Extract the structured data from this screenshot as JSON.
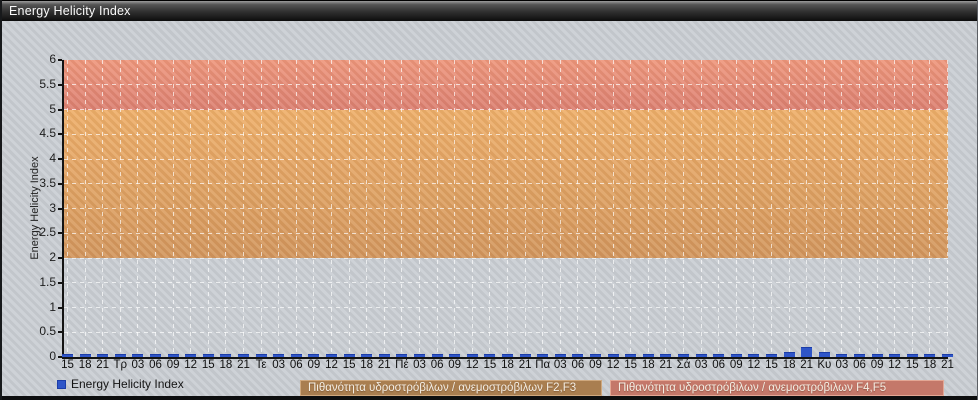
{
  "window": {
    "title": "Energy Helicity Index"
  },
  "legend": {
    "series_label": "Energy Helicity Index",
    "zone_f2f3_label": "Πιθανότητα υδροστρόβιλων / ανεμοστρόβιλων F2,F3",
    "zone_f4f5_label": "Πιθανότητα υδροστρόβιλων / ανεμοστρόβιλων F4,F5"
  },
  "colors": {
    "series_blue": "#2e55c8",
    "zone_f2f3_fill_top": "#eeae68",
    "zone_f2f3_fill_bottom": "#d2955b",
    "zone_f4f5_fill_top": "#ee957a",
    "zone_f4f5_fill_bottom": "#dc7e70",
    "legend_f2f3_bg": "#a97e50",
    "legend_f4f5_bg": "#c4786a"
  },
  "chart_data": {
    "type": "bar",
    "title": "Energy Helicity Index",
    "xlabel": "",
    "ylabel": "Energy Helicity Index",
    "ylim": [
      0,
      6
    ],
    "ytick_step": 0.5,
    "ytick_labels": [
      "6",
      "5.5",
      "5",
      "4.5",
      "4",
      "3.5",
      "3",
      "2.5",
      "2",
      "1.5",
      "1",
      "0.5",
      "0"
    ],
    "grid": true,
    "legend_position": "bottom",
    "x_labels": [
      "15",
      "18",
      "21",
      "Τρ",
      "03",
      "06",
      "09",
      "12",
      "15",
      "18",
      "21",
      "Τε",
      "03",
      "06",
      "09",
      "12",
      "15",
      "18",
      "21",
      "Πέ",
      "03",
      "06",
      "09",
      "12",
      "15",
      "18",
      "21",
      "Πα",
      "03",
      "06",
      "09",
      "12",
      "15",
      "18",
      "21",
      "Σά",
      "03",
      "06",
      "09",
      "12",
      "15",
      "18",
      "21",
      "Κυ",
      "03",
      "06",
      "09",
      "12",
      "15",
      "18",
      "21"
    ],
    "series": [
      {
        "name": "Energy Helicity Index",
        "color": "#2e55c8",
        "values": [
          0,
          0,
          0,
          0,
          0,
          0,
          0,
          0,
          0,
          0,
          0,
          0,
          0,
          0,
          0,
          0,
          0,
          0,
          0,
          0,
          0,
          0,
          0,
          0,
          0,
          0,
          0,
          0,
          0,
          0,
          0,
          0,
          0,
          0,
          0,
          0,
          0,
          0,
          0,
          0,
          0,
          0.05,
          0.15,
          0.05,
          0,
          0,
          0,
          0,
          0,
          0,
          0
        ]
      }
    ],
    "zones": [
      {
        "from": 2,
        "to": 5,
        "label": "Πιθανότητα υδροστρόβιλων / ανεμοστρόβιλων F2,F3"
      },
      {
        "from": 5,
        "to": 6,
        "label": "Πιθανότητα υδροστρόβιλων / ανεμοστρόβιλων F4,F5"
      }
    ]
  }
}
